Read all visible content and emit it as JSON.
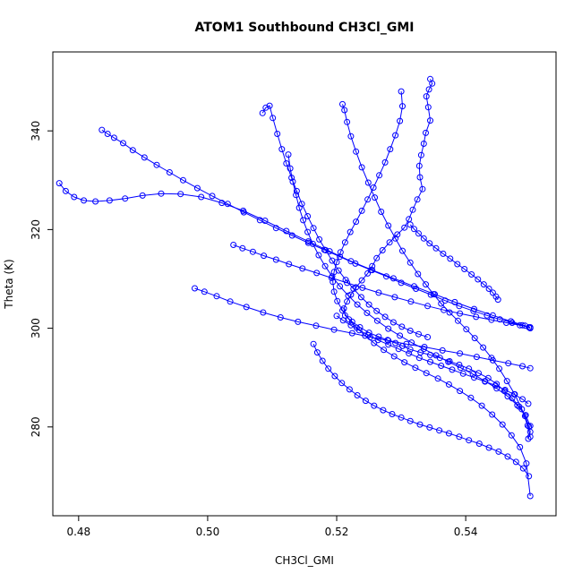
{
  "chart_data": {
    "type": "line",
    "title": "ATOM1 Southbound CH3Cl_GMI",
    "xlabel": "CH3Cl_GMI",
    "ylabel": "Theta (K)",
    "xlim": [
      0.476,
      0.554
    ],
    "ylim": [
      262,
      356
    ],
    "xticks": [
      0.48,
      0.5,
      0.52,
      0.54
    ],
    "xtick_labels": [
      "0.48",
      "0.50",
      "0.52",
      "0.54"
    ],
    "yticks": [
      280,
      300,
      320,
      340
    ],
    "ytick_labels": [
      "280",
      "300",
      "320",
      "340"
    ],
    "grid": false,
    "legend": "none",
    "markers": "open-circle",
    "color": "#0000ff",
    "series": [
      {
        "x": [
          0.5345,
          0.5348,
          0.5343,
          0.5339,
          0.5342,
          0.5345,
          0.5338,
          0.5335,
          0.5331,
          0.5328,
          0.5329,
          0.5333,
          0.5325,
          0.5318,
          0.5312,
          0.5305,
          0.5294,
          0.5282,
          0.5271,
          0.5262,
          0.5255,
          0.5248,
          0.5239,
          0.523,
          0.5222,
          0.5216,
          0.5211,
          0.5213,
          0.5224,
          0.5236,
          0.525,
          0.5265,
          0.5279,
          0.5291,
          0.5302,
          0.5314,
          0.533,
          0.5345,
          0.536,
          0.5375,
          0.539,
          0.5405,
          0.542,
          0.5435,
          0.5448,
          0.546,
          0.5472,
          0.5483,
          0.5492,
          0.5498,
          0.55,
          0.5497
        ],
        "y": [
          350.5,
          349.6,
          348.4,
          347.0,
          344.8,
          342.1,
          339.6,
          337.4,
          335.1,
          332.9,
          330.6,
          328.2,
          326.1,
          324.0,
          322.1,
          320.4,
          319.0,
          317.4,
          315.8,
          314.2,
          312.6,
          311.1,
          309.7,
          308.3,
          306.8,
          305.4,
          304.0,
          302.6,
          301.3,
          300.2,
          299.1,
          298.3,
          297.6,
          297.0,
          296.4,
          295.7,
          295.1,
          294.6,
          294.0,
          293.3,
          292.6,
          291.8,
          290.9,
          289.9,
          288.7,
          287.3,
          285.8,
          284.1,
          282.2,
          280.1,
          279.0,
          277.6
        ]
      },
      {
        "x": [
          0.4836,
          0.4845,
          0.4855,
          0.4869,
          0.4884,
          0.4902,
          0.4921,
          0.4941,
          0.4962,
          0.4984,
          0.5007,
          0.5031,
          0.5056,
          0.5081,
          0.5106,
          0.5131,
          0.5156,
          0.5181,
          0.5205,
          0.5229,
          0.5253,
          0.5277,
          0.53,
          0.5323,
          0.5346,
          0.5368,
          0.539,
          0.5412,
          0.5433,
          0.5453,
          0.5472,
          0.5488,
          0.5498
        ],
        "y": [
          340.2,
          339.4,
          338.6,
          337.5,
          336.1,
          334.6,
          333.1,
          331.6,
          330.0,
          328.4,
          326.8,
          325.2,
          323.5,
          321.9,
          320.3,
          318.8,
          317.3,
          315.9,
          314.5,
          313.1,
          311.8,
          310.5,
          309.2,
          308.0,
          306.8,
          305.6,
          304.5,
          303.5,
          302.6,
          301.8,
          301.1,
          300.6,
          300.2
        ]
      },
      {
        "x": [
          0.477,
          0.478,
          0.4793,
          0.4808,
          0.4826,
          0.4848,
          0.4872,
          0.4899,
          0.4928,
          0.4958,
          0.499,
          0.5022,
          0.5055,
          0.5089,
          0.5122,
          0.5156,
          0.5189,
          0.5222,
          0.5255,
          0.5288,
          0.532,
          0.5352,
          0.5383,
          0.5413,
          0.5442,
          0.547,
          0.5492,
          0.55
        ],
        "y": [
          329.4,
          327.8,
          326.6,
          325.9,
          325.7,
          325.9,
          326.3,
          326.9,
          327.3,
          327.2,
          326.6,
          325.4,
          323.8,
          321.8,
          319.7,
          317.6,
          315.6,
          313.6,
          311.8,
          310.1,
          308.5,
          306.9,
          305.3,
          303.9,
          302.6,
          301.4,
          300.5,
          300.0
        ]
      },
      {
        "x": [
          0.498,
          0.4995,
          0.5014,
          0.5035,
          0.506,
          0.5086,
          0.5113,
          0.514,
          0.5168,
          0.5196,
          0.5224,
          0.5252,
          0.528,
          0.5308,
          0.5336,
          0.5364,
          0.5391,
          0.5417,
          0.5442,
          0.5466,
          0.5488,
          0.55
        ],
        "y": [
          308.1,
          307.4,
          306.5,
          305.4,
          304.3,
          303.2,
          302.2,
          301.3,
          300.5,
          299.7,
          299.0,
          298.2,
          297.5,
          296.8,
          296.2,
          295.5,
          294.9,
          294.2,
          293.5,
          292.9,
          292.3,
          291.9
        ]
      },
      {
        "x": [
          0.5085,
          0.509,
          0.5096,
          0.5101,
          0.5108,
          0.5115,
          0.5122,
          0.513,
          0.5138,
          0.5146,
          0.5155,
          0.5164,
          0.5173,
          0.5183,
          0.5193,
          0.5203,
          0.5214,
          0.5226,
          0.5238,
          0.525,
          0.5262,
          0.5275,
          0.5288,
          0.5301,
          0.5314,
          0.5327,
          0.5341
        ],
        "y": [
          343.6,
          344.7,
          345.1,
          342.6,
          339.4,
          336.3,
          333.4,
          330.5,
          327.8,
          325.2,
          322.7,
          320.3,
          318.0,
          315.8,
          313.7,
          311.7,
          309.8,
          308.0,
          306.3,
          304.8,
          303.5,
          302.3,
          301.2,
          300.3,
          299.5,
          298.8,
          298.2
        ]
      },
      {
        "x": [
          0.5209,
          0.5212,
          0.5216,
          0.5222,
          0.523,
          0.5239,
          0.5249,
          0.5259,
          0.5269,
          0.528,
          0.5291,
          0.5302,
          0.5314,
          0.5326,
          0.5338,
          0.535,
          0.5362,
          0.5375,
          0.5388,
          0.5401,
          0.5414,
          0.5427,
          0.544,
          0.5452,
          0.5464,
          0.5476,
          0.5487,
          0.5496,
          0.55
        ],
        "y": [
          345.4,
          344.2,
          341.8,
          338.9,
          335.8,
          332.6,
          329.5,
          326.5,
          323.6,
          320.8,
          318.2,
          315.7,
          313.3,
          311.0,
          308.9,
          306.9,
          305.0,
          303.2,
          301.5,
          299.8,
          298.0,
          296.1,
          294.0,
          291.8,
          289.3,
          286.6,
          283.6,
          280.3,
          278.0
        ]
      },
      {
        "x": [
          0.53,
          0.5302,
          0.5298,
          0.5291,
          0.5283,
          0.5275,
          0.5266,
          0.5257,
          0.5248,
          0.5239,
          0.523,
          0.5221,
          0.5213,
          0.5206,
          0.52,
          0.5196,
          0.5194,
          0.5196,
          0.5201,
          0.5209,
          0.5219,
          0.5231,
          0.5244,
          0.5258,
          0.5273,
          0.5289,
          0.5305,
          0.5322,
          0.5339,
          0.5357,
          0.5374,
          0.5391,
          0.5408,
          0.5425,
          0.5441,
          0.5457,
          0.5471,
          0.5484,
          0.5494,
          0.55
        ],
        "y": [
          348.0,
          345.0,
          342.0,
          339.1,
          336.3,
          333.6,
          331.0,
          328.5,
          326.1,
          323.8,
          321.6,
          319.5,
          317.4,
          315.4,
          313.4,
          311.4,
          309.4,
          307.4,
          305.5,
          303.6,
          301.8,
          300.1,
          298.5,
          297.0,
          295.6,
          294.3,
          293.1,
          292.0,
          290.9,
          289.8,
          288.6,
          287.3,
          285.9,
          284.3,
          282.5,
          280.5,
          278.3,
          275.9,
          272.6,
          266.0
        ]
      },
      {
        "x": [
          0.5125,
          0.5128,
          0.5132,
          0.5137,
          0.5142,
          0.5148,
          0.5155,
          0.5163,
          0.5172,
          0.5182,
          0.5193,
          0.5205,
          0.5218,
          0.5232,
          0.5247,
          0.5263,
          0.528,
          0.5298,
          0.5316,
          0.5335,
          0.5354,
          0.5373,
          0.5392,
          0.5411,
          0.543,
          0.5448,
          0.5465,
          0.548,
          0.5493,
          0.55
        ],
        "y": [
          335.2,
          332.4,
          329.7,
          327.0,
          324.4,
          321.9,
          319.5,
          317.1,
          314.8,
          312.6,
          310.5,
          308.5,
          306.6,
          304.8,
          303.1,
          301.5,
          299.9,
          298.5,
          297.1,
          295.8,
          294.5,
          293.2,
          292.0,
          290.7,
          289.3,
          287.8,
          286.2,
          284.4,
          282.4,
          280.2
        ]
      },
      {
        "x": [
          0.5164,
          0.517,
          0.5178,
          0.5187,
          0.5197,
          0.5208,
          0.522,
          0.5232,
          0.5245,
          0.5258,
          0.5272,
          0.5286,
          0.53,
          0.5314,
          0.5329,
          0.5344,
          0.5359,
          0.5374,
          0.539,
          0.5405,
          0.5421,
          0.5436,
          0.5451,
          0.5465,
          0.5478,
          0.5489,
          0.5498
        ],
        "y": [
          296.8,
          295.1,
          293.4,
          291.8,
          290.3,
          288.9,
          287.6,
          286.4,
          285.3,
          284.3,
          283.4,
          282.6,
          281.9,
          281.2,
          280.5,
          279.9,
          279.3,
          278.7,
          278.0,
          277.3,
          276.6,
          275.8,
          275.0,
          274.0,
          272.9,
          271.6,
          270.0
        ]
      },
      {
        "x": [
          0.504,
          0.5054,
          0.507,
          0.5087,
          0.5106,
          0.5126,
          0.5147,
          0.5169,
          0.5192,
          0.5216,
          0.524,
          0.5265,
          0.529,
          0.5315,
          0.5341,
          0.5366,
          0.5391,
          0.5416,
          0.544,
          0.5463,
          0.5484,
          0.55
        ],
        "y": [
          316.9,
          316.2,
          315.5,
          314.7,
          313.9,
          313.0,
          312.1,
          311.2,
          310.2,
          309.2,
          308.2,
          307.2,
          306.3,
          305.4,
          304.5,
          303.7,
          303.0,
          302.3,
          301.7,
          301.1,
          300.6,
          300.2
        ]
      },
      {
        "x": [
          0.545,
          0.5447,
          0.5442,
          0.5436,
          0.5428,
          0.5419,
          0.5409,
          0.5398,
          0.5387,
          0.5376,
          0.5365,
          0.5354,
          0.5344,
          0.5335,
          0.5327,
          0.532,
          0.5314
        ],
        "y": [
          305.8,
          306.4,
          307.2,
          308.0,
          308.9,
          309.9,
          310.9,
          312.0,
          313.0,
          314.1,
          315.1,
          316.2,
          317.2,
          318.2,
          319.2,
          320.1,
          321.0
        ]
      },
      {
        "x": [
          0.52,
          0.521,
          0.5222,
          0.5235,
          0.5249,
          0.5264,
          0.528,
          0.5296,
          0.5312,
          0.5328,
          0.5345,
          0.5362,
          0.5379,
          0.5396,
          0.5413,
          0.543,
          0.5446,
          0.5461,
          0.5475,
          0.5488,
          0.5497
        ],
        "y": [
          302.5,
          301.6,
          300.6,
          299.6,
          298.6,
          297.6,
          296.7,
          295.8,
          294.9,
          294.0,
          293.2,
          292.4,
          291.6,
          290.8,
          290.0,
          289.2,
          288.4,
          287.5,
          286.6,
          285.6,
          284.7
        ]
      }
    ]
  }
}
